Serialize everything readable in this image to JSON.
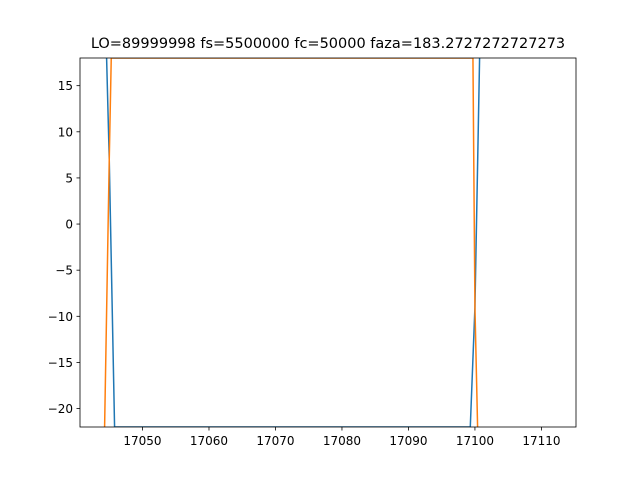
{
  "chart_data": {
    "type": "line",
    "title": "LO=89999998 fs=5500000 fc=50000 faza=183.2727272727273",
    "xlabel": "",
    "ylabel": "",
    "xlim": [
      17040.6,
      17115.2
    ],
    "ylim": [
      -22,
      18
    ],
    "x_ticks": [
      17050,
      17060,
      17070,
      17080,
      17090,
      17100,
      17110
    ],
    "y_ticks": [
      15,
      10,
      5,
      0,
      -5,
      -10,
      -15,
      -20
    ],
    "x_tick_labels": [
      "17050",
      "17060",
      "17070",
      "17080",
      "17090",
      "17100",
      "17110"
    ],
    "y_tick_labels": [
      "15",
      "10",
      "5",
      "0",
      "−5",
      "−10",
      "−15",
      "−20"
    ],
    "grid": false,
    "legend": "none",
    "series": [
      {
        "color": "#1f77b4",
        "x": [
          17044.6,
          17045.0,
          17045.8,
          17099.3,
          17100.0,
          17100.7
        ],
        "y": [
          18,
          7,
          -22,
          -22,
          -9,
          18
        ]
      },
      {
        "color": "#ff7f0e",
        "x": [
          17044.3,
          17045.0,
          17045.3,
          17099.7,
          17100.0,
          17100.4
        ],
        "y": [
          -22,
          7,
          18,
          18,
          -9,
          -22
        ]
      }
    ]
  }
}
